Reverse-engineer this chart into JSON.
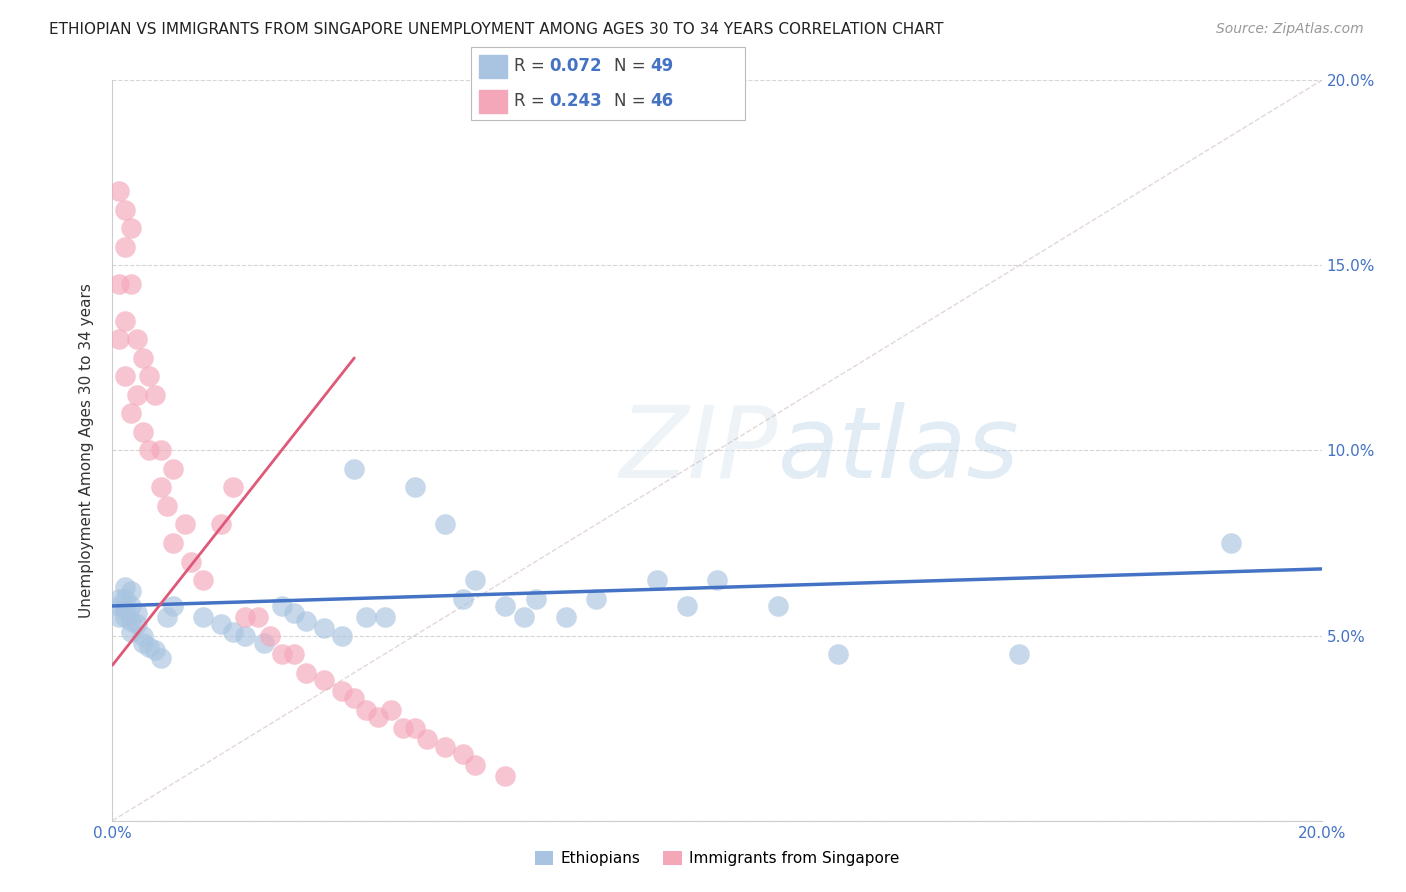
{
  "title": "ETHIOPIAN VS IMMIGRANTS FROM SINGAPORE UNEMPLOYMENT AMONG AGES 30 TO 34 YEARS CORRELATION CHART",
  "source": "Source: ZipAtlas.com",
  "ylabel": "Unemployment Among Ages 30 to 34 years",
  "xlim": [
    0.0,
    0.2
  ],
  "ylim": [
    0.0,
    0.2
  ],
  "background_color": "#ffffff",
  "grid_color": "#cccccc",
  "diagonal_line_color": "#c8b0b0",
  "blue_line_color": "#4472c4",
  "pink_line_color": "#e05878",
  "watermark": "ZIPatlas",
  "eth_color": "#a8c4e0",
  "sing_color": "#f4a7b9",
  "eth_R": "0.072",
  "eth_N": "49",
  "sing_R": "0.243",
  "sing_N": "46",
  "ethiopians_x": [
    0.001,
    0.001,
    0.001,
    0.002,
    0.002,
    0.002,
    0.002,
    0.003,
    0.003,
    0.003,
    0.003,
    0.004,
    0.004,
    0.005,
    0.005,
    0.006,
    0.007,
    0.008,
    0.009,
    0.01,
    0.015,
    0.018,
    0.02,
    0.022,
    0.025,
    0.028,
    0.03,
    0.032,
    0.035,
    0.038,
    0.04,
    0.042,
    0.045,
    0.05,
    0.055,
    0.058,
    0.06,
    0.065,
    0.068,
    0.07,
    0.075,
    0.08,
    0.09,
    0.095,
    0.1,
    0.11,
    0.12,
    0.15,
    0.185
  ],
  "ethiopians_y": [
    0.06,
    0.055,
    0.058,
    0.063,
    0.06,
    0.057,
    0.055,
    0.062,
    0.058,
    0.054,
    0.051,
    0.056,
    0.053,
    0.05,
    0.048,
    0.047,
    0.046,
    0.044,
    0.055,
    0.058,
    0.055,
    0.053,
    0.051,
    0.05,
    0.048,
    0.058,
    0.056,
    0.054,
    0.052,
    0.05,
    0.095,
    0.055,
    0.055,
    0.09,
    0.08,
    0.06,
    0.065,
    0.058,
    0.055,
    0.06,
    0.055,
    0.06,
    0.065,
    0.058,
    0.065,
    0.058,
    0.045,
    0.045,
    0.075
  ],
  "singapore_x": [
    0.001,
    0.001,
    0.001,
    0.002,
    0.002,
    0.002,
    0.002,
    0.003,
    0.003,
    0.003,
    0.004,
    0.004,
    0.005,
    0.005,
    0.006,
    0.006,
    0.007,
    0.008,
    0.008,
    0.009,
    0.01,
    0.01,
    0.012,
    0.013,
    0.015,
    0.018,
    0.02,
    0.022,
    0.024,
    0.026,
    0.028,
    0.03,
    0.032,
    0.035,
    0.038,
    0.04,
    0.042,
    0.044,
    0.046,
    0.048,
    0.05,
    0.052,
    0.055,
    0.058,
    0.06,
    0.065
  ],
  "singapore_y": [
    0.17,
    0.145,
    0.13,
    0.165,
    0.155,
    0.135,
    0.12,
    0.16,
    0.145,
    0.11,
    0.13,
    0.115,
    0.125,
    0.105,
    0.12,
    0.1,
    0.115,
    0.09,
    0.1,
    0.085,
    0.095,
    0.075,
    0.08,
    0.07,
    0.065,
    0.08,
    0.09,
    0.055,
    0.055,
    0.05,
    0.045,
    0.045,
    0.04,
    0.038,
    0.035,
    0.033,
    0.03,
    0.028,
    0.03,
    0.025,
    0.025,
    0.022,
    0.02,
    0.018,
    0.015,
    0.012
  ],
  "blue_trend_x": [
    0.0,
    0.2
  ],
  "blue_trend_y": [
    0.058,
    0.068
  ],
  "pink_trend_x": [
    0.0,
    0.04
  ],
  "pink_trend_y": [
    0.042,
    0.125
  ]
}
